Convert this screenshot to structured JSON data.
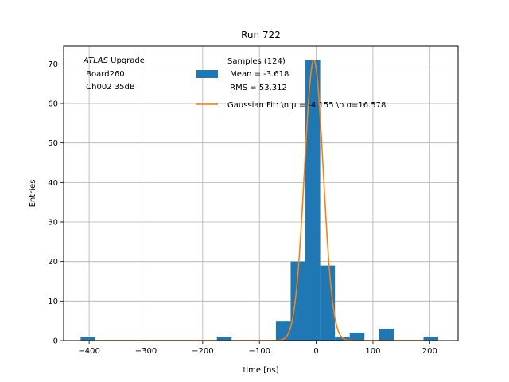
{
  "chart_data": {
    "type": "bar",
    "title": "Run 722",
    "xlabel": "time [ns]",
    "ylabel": "Entries",
    "xlim": [
      -445,
      250
    ],
    "ylim": [
      0,
      74.5
    ],
    "xticks": [
      -400,
      -300,
      -200,
      -100,
      0,
      100,
      200
    ],
    "yticks": [
      0,
      10,
      20,
      30,
      40,
      50,
      60,
      70
    ],
    "xtick_labels": [
      "−400",
      "−300",
      "−200",
      "−100",
      "0",
      "100",
      "200"
    ],
    "ytick_labels": [
      "0",
      "10",
      "20",
      "30",
      "40",
      "50",
      "60",
      "70"
    ],
    "grid": true,
    "bin_width": 26,
    "histogram": {
      "name": "Samples (124)",
      "color": "#1f77b4",
      "bins": [
        {
          "left": -415,
          "count": 1
        },
        {
          "left": -175,
          "count": 1
        },
        {
          "left": -71,
          "count": 5
        },
        {
          "left": -45,
          "count": 20
        },
        {
          "left": -19,
          "count": 71
        },
        {
          "left": 7,
          "count": 19
        },
        {
          "left": 33,
          "count": 1
        },
        {
          "left": 59,
          "count": 2
        },
        {
          "left": 111,
          "count": 3
        },
        {
          "left": 189,
          "count": 1
        }
      ]
    },
    "fit": {
      "name": "Gaussian Fit: \\n $\\mu$ = -4.155 \\n $\\sigma$=16.578",
      "color": "#ff7f0e",
      "mu": -4.155,
      "sigma": 16.578,
      "amplitude": 71,
      "x_range": [
        -415,
        215
      ]
    },
    "legend": {
      "placement": "top-right",
      "samples_lines": [
        "Samples (124)",
        " Mean = -3.618",
        " RMS = 53.312"
      ],
      "fit_line": "Gaussian Fit: \\n μ = -4.155 \\n σ=16.578"
    },
    "annotation": {
      "italic": "ATLAS",
      "rest": " Upgrade",
      "lines": [
        " Board260",
        " Ch002 35dB"
      ]
    }
  }
}
